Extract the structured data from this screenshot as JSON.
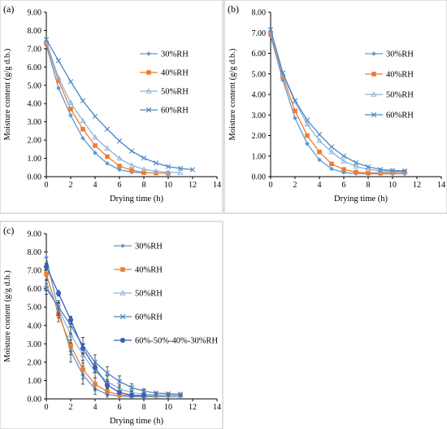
{
  "chart_data": [
    {
      "type": "line",
      "panel_label": "(a)",
      "xlabel": "Drying time (h)",
      "ylabel": "Moisture content (g/g d.b.)",
      "xlim": [
        0,
        14
      ],
      "ylim": [
        0,
        9
      ],
      "x_ticks": [
        "0",
        "2",
        "4",
        "6",
        "8",
        "10",
        "12",
        "14"
      ],
      "y_ticks": [
        "0.00",
        "1.00",
        "2.00",
        "3.00",
        "4.00",
        "5.00",
        "6.00",
        "7.00",
        "8.00",
        "9.00"
      ],
      "grid": false,
      "legend_position": "center-right",
      "series": [
        {
          "name": "30%RH",
          "marker": "diamond",
          "x": [
            0,
            1,
            2,
            3,
            4,
            5,
            6,
            7,
            8
          ],
          "y": [
            7.2,
            4.85,
            3.35,
            2.1,
            1.3,
            0.72,
            0.38,
            0.25,
            0.2
          ]
        },
        {
          "name": "40%RH",
          "marker": "square",
          "x": [
            0,
            1,
            2,
            3,
            4,
            5,
            6,
            7,
            8,
            9,
            10
          ],
          "y": [
            7.3,
            5.25,
            3.7,
            2.6,
            1.7,
            1.1,
            0.58,
            0.35,
            0.22,
            0.2,
            0.18
          ]
        },
        {
          "name": "50%RH",
          "marker": "triangle",
          "x": [
            0,
            1,
            2,
            3,
            4,
            5,
            6,
            7,
            8,
            9,
            10,
            11
          ],
          "y": [
            7.4,
            5.4,
            4.05,
            3.05,
            2.15,
            1.55,
            1.0,
            0.62,
            0.4,
            0.3,
            0.24,
            0.22
          ]
        },
        {
          "name": "60%RH",
          "marker": "cross",
          "x": [
            0,
            1,
            2,
            3,
            4,
            5,
            6,
            7,
            8,
            9,
            10,
            11,
            12
          ],
          "y": [
            7.5,
            6.35,
            5.2,
            4.15,
            3.3,
            2.6,
            1.95,
            1.4,
            1.02,
            0.75,
            0.55,
            0.45,
            0.38
          ]
        }
      ]
    },
    {
      "type": "line",
      "panel_label": "(b)",
      "xlabel": "Drying time (h)",
      "ylabel": "Moisture content (g/g d.b.)",
      "xlim": [
        0,
        14
      ],
      "ylim": [
        0,
        8
      ],
      "x_ticks": [
        "0",
        "2",
        "4",
        "6",
        "8",
        "10",
        "12",
        "14"
      ],
      "y_ticks": [
        "0.00",
        "1.00",
        "2.00",
        "3.00",
        "4.00",
        "5.00",
        "6.00",
        "7.00",
        "8.00"
      ],
      "grid": false,
      "legend_position": "center-right",
      "series": [
        {
          "name": "30%RH",
          "marker": "diamond",
          "x": [
            0,
            1,
            2,
            3,
            4,
            5,
            6,
            7,
            8,
            9,
            10,
            11
          ],
          "y": [
            6.85,
            4.7,
            2.85,
            1.6,
            0.82,
            0.38,
            0.2,
            0.15,
            0.14,
            0.14,
            0.14,
            0.14
          ]
        },
        {
          "name": "40%RH",
          "marker": "square",
          "x": [
            0,
            1,
            2,
            3,
            4,
            5,
            6,
            7,
            8,
            9,
            10,
            11
          ],
          "y": [
            6.95,
            4.85,
            3.2,
            2.0,
            1.2,
            0.62,
            0.35,
            0.22,
            0.18,
            0.18,
            0.2,
            0.22
          ]
        },
        {
          "name": "50%RH",
          "marker": "triangle",
          "x": [
            0,
            1,
            2,
            3,
            4,
            5,
            6,
            7,
            8,
            9,
            10,
            11
          ],
          "y": [
            7.05,
            4.95,
            3.65,
            2.55,
            1.75,
            1.2,
            0.75,
            0.5,
            0.35,
            0.28,
            0.25,
            0.25
          ]
        },
        {
          "name": "60%RH",
          "marker": "cross",
          "x": [
            0,
            1,
            2,
            3,
            4,
            5,
            6,
            7,
            8,
            9,
            10,
            11
          ],
          "y": [
            7.15,
            5.05,
            3.7,
            2.75,
            2.05,
            1.45,
            1.0,
            0.68,
            0.48,
            0.35,
            0.3,
            0.28
          ]
        }
      ]
    },
    {
      "type": "line",
      "panel_label": "(c)",
      "xlabel": "Drying time (h)",
      "ylabel": "Moisture content (g/g d.b.)",
      "xlim": [
        0,
        14
      ],
      "ylim": [
        0,
        9
      ],
      "x_ticks": [
        "0",
        "2",
        "4",
        "6",
        "8",
        "10",
        "12",
        "14"
      ],
      "y_ticks": [
        "0.00",
        "1.00",
        "2.00",
        "3.00",
        "4.00",
        "5.00",
        "6.00",
        "7.00",
        "8.00",
        "9.00"
      ],
      "grid": false,
      "legend_position": "center-right",
      "series": [
        {
          "name": "30%RH",
          "marker": "diamond",
          "x": [
            0,
            1,
            2,
            3,
            4,
            5,
            6,
            7,
            8,
            9,
            10,
            11
          ],
          "y": [
            7.7,
            4.8,
            2.6,
            1.3,
            0.55,
            0.25,
            0.15,
            0.12,
            0.12,
            0.12,
            0.12,
            0.12
          ],
          "err": [
            0.3,
            0.4,
            0.6,
            0.5,
            0.3,
            0.15,
            0.05,
            0.03,
            0.03,
            0.03,
            0.03,
            0.03
          ]
        },
        {
          "name": "40%RH",
          "marker": "square",
          "x": [
            0,
            1,
            2,
            3,
            4,
            5,
            6,
            7,
            8,
            9,
            10,
            11
          ],
          "y": [
            6.8,
            4.6,
            2.9,
            1.6,
            0.8,
            0.4,
            0.22,
            0.18,
            0.18,
            0.18,
            0.2,
            0.2
          ],
          "err": [
            0.35,
            0.4,
            0.5,
            0.5,
            0.35,
            0.2,
            0.08,
            0.05,
            0.05,
            0.05,
            0.05,
            0.05
          ]
        },
        {
          "name": "50%RH",
          "marker": "triangle",
          "x": [
            0,
            1,
            2,
            3,
            4,
            5,
            6,
            7,
            8,
            9,
            10,
            11
          ],
          "y": [
            6.2,
            4.9,
            3.5,
            2.4,
            1.5,
            0.95,
            0.55,
            0.35,
            0.25,
            0.22,
            0.2,
            0.2
          ],
          "err": [
            0.3,
            0.35,
            0.45,
            0.45,
            0.35,
            0.3,
            0.2,
            0.1,
            0.06,
            0.05,
            0.05,
            0.05
          ]
        },
        {
          "name": "60%RH",
          "marker": "cross",
          "x": [
            0,
            1,
            2,
            3,
            4,
            5,
            6,
            7,
            8,
            9,
            10,
            11
          ],
          "y": [
            6.0,
            5.0,
            4.0,
            2.9,
            2.0,
            1.4,
            0.95,
            0.62,
            0.42,
            0.32,
            0.28,
            0.25
          ],
          "err": [
            0.3,
            0.35,
            0.45,
            0.45,
            0.4,
            0.35,
            0.3,
            0.2,
            0.12,
            0.06,
            0.05,
            0.05
          ]
        },
        {
          "name": "60%-50%-40%-30%RH",
          "marker": "circle",
          "x": [
            0,
            1,
            2,
            3,
            4,
            5,
            6,
            7,
            8
          ],
          "y": [
            7.2,
            5.75,
            4.3,
            2.75,
            1.7,
            0.75,
            0.35,
            0.2,
            0.18
          ],
          "err": [
            0.15,
            0.15,
            0.2,
            0.25,
            0.25,
            0.2,
            0.08,
            0.05,
            0.04
          ]
        }
      ]
    }
  ],
  "colors": {
    "30%RH": "#5b9bd5",
    "40%RH": "#ed7d31",
    "50%RH": "#8eb4dc",
    "60%RH": "#4a86c5",
    "60%-50%-40%-30%RH": "#3a5fbf",
    "axis": "#000000"
  }
}
